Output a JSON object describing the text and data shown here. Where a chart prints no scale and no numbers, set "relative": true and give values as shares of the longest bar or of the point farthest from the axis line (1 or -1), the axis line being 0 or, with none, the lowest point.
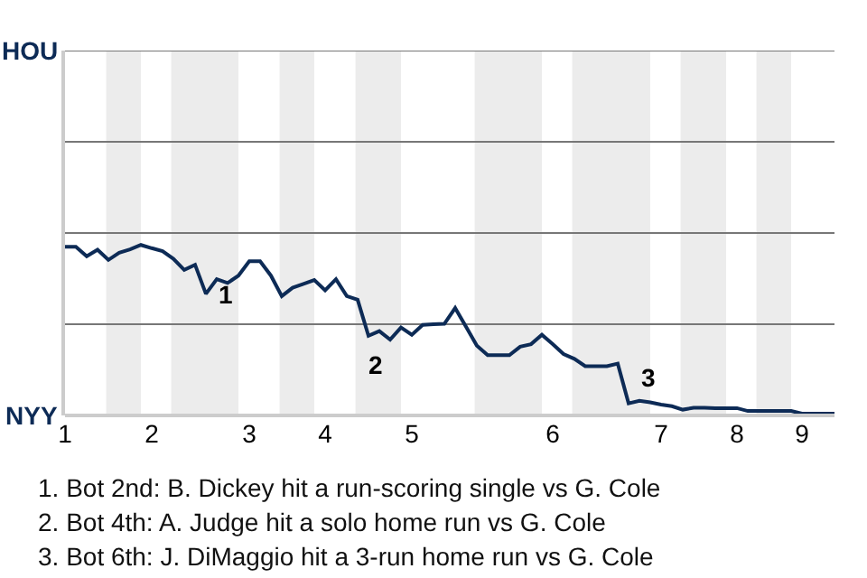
{
  "chart_data": {
    "type": "line",
    "relative": true,
    "categories": [
      "1",
      null,
      null,
      null,
      null,
      null,
      null,
      null,
      "2",
      null,
      null,
      null,
      null,
      null,
      null,
      null,
      null,
      "3",
      null,
      null,
      null,
      null,
      null,
      null,
      "4",
      null,
      null,
      null,
      null,
      null,
      null,
      null,
      "5",
      null,
      null,
      null,
      null,
      null,
      null,
      null,
      null,
      null,
      null,
      null,
      null,
      "6",
      null,
      null,
      null,
      null,
      null,
      null,
      null,
      null,
      null,
      "7",
      null,
      null,
      null,
      null,
      null,
      null,
      "8",
      null,
      null,
      null,
      null,
      null,
      "9",
      null,
      null,
      null
    ],
    "series": [
      {
        "color": "#0d2b56",
        "values": [
          0.989,
          0.989,
          0.934,
          0.972,
          0.912,
          0.955,
          0.974,
          1,
          0.981,
          0.964,
          0.919,
          0.854,
          0.884,
          0.713,
          0.799,
          0.777,
          0.82,
          0.904,
          0.904,
          0.82,
          0.7,
          0.749,
          0.771,
          0.794,
          0.734,
          0.799,
          0.7,
          0.679,
          0.467,
          0.495,
          0.445,
          0.516,
          0.473,
          0.531,
          0.535,
          0.537,
          0.63,
          0.52,
          0.409,
          0.353,
          0.353,
          0.353,
          0.403,
          0.418,
          0.473,
          0.418,
          0.36,
          0.332,
          0.289,
          0.289,
          0.289,
          0.304,
          0.071,
          0.086,
          0.077,
          0.064,
          0.054,
          0.034,
          0.045,
          0.045,
          0.043,
          0.043,
          0.043,
          0.026,
          0.026,
          0.026,
          0.026,
          0.026,
          0.011,
          0.011,
          0.011,
          0.011
        ]
      }
    ],
    "legend": false,
    "marker": "none",
    "line_style": "solid",
    "ref_lines": [
      {
        "axis": "y",
        "value": 0.535,
        "color": "#777777"
      },
      {
        "axis": "y",
        "value": 1.07,
        "color": "#777777"
      },
      {
        "axis": "y",
        "value": 1.605,
        "color": "#777777"
      },
      {
        "axis": "y",
        "value": 2.14,
        "color": "#777777"
      }
    ],
    "annotations": [
      "1",
      "2",
      "3",
      "HOU",
      "NYY",
      "1. Bot 2nd: B. Dickey hit a run-scoring single vs G. Cole",
      "2. Bot 4th: A. Judge hit a solo home run vs G. Cole",
      "3. Bot 6th: J. DiMaggio hit a 3-run home run vs G. Cole"
    ]
  }
}
